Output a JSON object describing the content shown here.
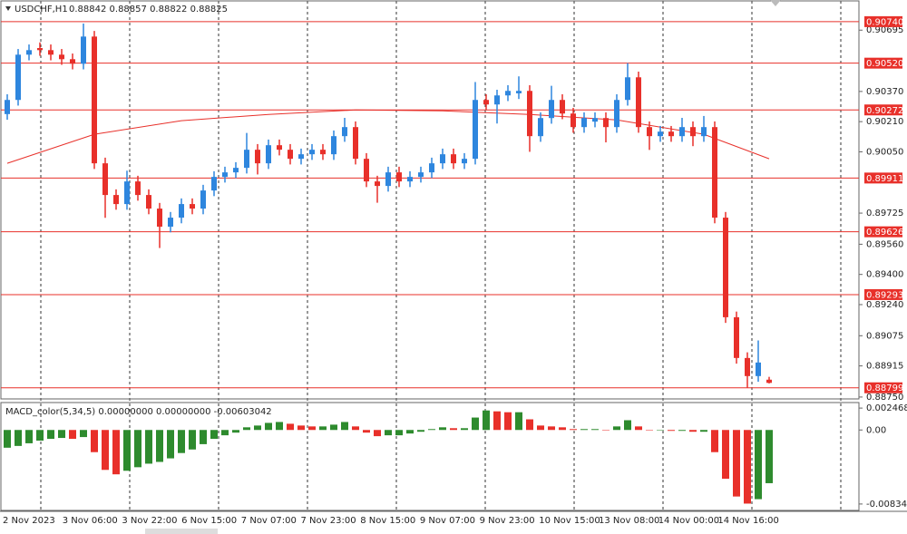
{
  "chart_data": {
    "type": "candlestick",
    "title": "USDCHF,H1",
    "ohlc_label": "0.88842 0.88857 0.88822 0.88825",
    "up_color": "#2e86de",
    "down_color": "#e8302a",
    "ma_color": "#e8302a",
    "level_color": "#e8302a",
    "ylim": [
      0.8874,
      0.9085
    ],
    "yticks": [
      0.90695,
      {
        "value": 0.9037,
        "label": "0.90370"
      },
      {
        "value": 0.9021,
        "label": "0.90210"
      },
      {
        "value": 0.9005,
        "label": "0.90050"
      },
      0.89725,
      {
        "value": 0.8956,
        "label": "0.89560"
      },
      {
        "value": 0.894,
        "label": "0.89400"
      },
      {
        "value": 0.8924,
        "label": "0.89240"
      },
      0.89075,
      0.88915,
      {
        "value": 0.8875,
        "label": "0.88750"
      }
    ],
    "levels": [
      {
        "value": 0.9074,
        "label": "0.90740"
      },
      {
        "value": 0.9052,
        "label": "0.90520"
      },
      0.90272,
      0.89911,
      0.89626,
      0.89293,
      0.88799
    ],
    "x_labels": [
      "2 Nov 2023",
      "3 Nov 06:00",
      "3 Nov 22:00",
      "6 Nov 15:00",
      "7 Nov 07:00",
      "7 Nov 23:00",
      "8 Nov 15:00",
      "9 Nov 07:00",
      "9 Nov 23:00",
      "10 Nov 15:00",
      "13 Nov 08:00",
      "14 Nov 00:00",
      "14 Nov 16:00"
    ],
    "candles": [
      [
        0.9025,
        0.90355,
        0.9022,
        0.90325
      ],
      [
        0.90325,
        0.90595,
        0.90295,
        0.90565
      ],
      [
        0.90565,
        0.90619,
        0.90535,
        0.90589
      ],
      [
        0.906,
        0.9063,
        0.90559,
        0.90589
      ],
      [
        0.90589,
        0.90619,
        0.90535,
        0.90565
      ],
      [
        0.90565,
        0.90595,
        0.90511,
        0.90541
      ],
      [
        0.90541,
        0.90571,
        0.90487,
        0.90517
      ],
      [
        0.90517,
        0.9073,
        0.90487,
        0.90661
      ],
      [
        0.90661,
        0.90691,
        0.89959,
        0.89989
      ],
      [
        0.89989,
        0.90019,
        0.897,
        0.89821
      ],
      [
        0.89821,
        0.89851,
        0.89743,
        0.89773
      ],
      [
        0.89773,
        0.8995,
        0.89743,
        0.89893
      ],
      [
        0.89893,
        0.89923,
        0.89791,
        0.89821
      ],
      [
        0.89821,
        0.89851,
        0.89719,
        0.89749
      ],
      [
        0.89749,
        0.89779,
        0.8954,
        0.89653
      ],
      [
        0.89653,
        0.89731,
        0.89623,
        0.89701
      ],
      [
        0.89701,
        0.89803,
        0.89671,
        0.89773
      ],
      [
        0.89773,
        0.89803,
        0.89719,
        0.89749
      ],
      [
        0.89749,
        0.89875,
        0.89719,
        0.89845
      ],
      [
        0.89845,
        0.89947,
        0.89815,
        0.89917
      ],
      [
        0.89917,
        0.89971,
        0.89887,
        0.89941
      ],
      [
        0.89941,
        0.89995,
        0.89911,
        0.89965
      ],
      [
        0.89965,
        0.9015,
        0.89935,
        0.90061
      ],
      [
        0.90061,
        0.90091,
        0.8993,
        0.89989
      ],
      [
        0.89989,
        0.90115,
        0.89959,
        0.90085
      ],
      [
        0.90085,
        0.90115,
        0.90031,
        0.90061
      ],
      [
        0.90061,
        0.90091,
        0.89983,
        0.90013
      ],
      [
        0.90013,
        0.90067,
        0.89983,
        0.90037
      ],
      [
        0.90037,
        0.90091,
        0.90007,
        0.90061
      ],
      [
        0.90061,
        0.90091,
        0.90007,
        0.90037
      ],
      [
        0.90037,
        0.90163,
        0.90007,
        0.90133
      ],
      [
        0.90133,
        0.9023,
        0.90103,
        0.90181
      ],
      [
        0.90181,
        0.90211,
        0.89983,
        0.90013
      ],
      [
        0.90013,
        0.90043,
        0.89863,
        0.89893
      ],
      [
        0.89893,
        0.89923,
        0.8978,
        0.89869
      ],
      [
        0.89869,
        0.89971,
        0.89839,
        0.89941
      ],
      [
        0.89941,
        0.89971,
        0.89863,
        0.89893
      ],
      [
        0.89893,
        0.89947,
        0.89863,
        0.89917
      ],
      [
        0.89917,
        0.89971,
        0.89887,
        0.89941
      ],
      [
        0.89941,
        0.90019,
        0.89911,
        0.89989
      ],
      [
        0.89989,
        0.90067,
        0.89959,
        0.90037
      ],
      [
        0.90037,
        0.90067,
        0.89959,
        0.89989
      ],
      [
        0.89989,
        0.90043,
        0.89959,
        0.90013
      ],
      [
        0.90013,
        0.9042,
        0.89983,
        0.90325
      ],
      [
        0.90325,
        0.90355,
        0.90271,
        0.90301
      ],
      [
        0.90301,
        0.90379,
        0.902,
        0.90349
      ],
      [
        0.90349,
        0.90403,
        0.90319,
        0.90373
      ],
      [
        0.9036,
        0.9045,
        0.9033,
        0.90373
      ],
      [
        0.90373,
        0.90403,
        0.9005,
        0.90133
      ],
      [
        0.90133,
        0.90259,
        0.90103,
        0.90229
      ],
      [
        0.90229,
        0.904,
        0.90199,
        0.90325
      ],
      [
        0.90325,
        0.90355,
        0.90223,
        0.90253
      ],
      [
        0.90253,
        0.90283,
        0.90151,
        0.90181
      ],
      [
        0.90181,
        0.90259,
        0.90151,
        0.90229
      ],
      [
        0.9021,
        0.90259,
        0.9018,
        0.90229
      ],
      [
        0.90229,
        0.90259,
        0.901,
        0.90181
      ],
      [
        0.90181,
        0.90355,
        0.90151,
        0.90325
      ],
      [
        0.90325,
        0.9052,
        0.90295,
        0.90445
      ],
      [
        0.90445,
        0.90475,
        0.90151,
        0.90181
      ],
      [
        0.90181,
        0.90211,
        0.9006,
        0.90133
      ],
      [
        0.90133,
        0.90187,
        0.90103,
        0.90157
      ],
      [
        0.90157,
        0.90187,
        0.90103,
        0.90133
      ],
      [
        0.90133,
        0.9023,
        0.90103,
        0.90181
      ],
      [
        0.90181,
        0.90211,
        0.9008,
        0.90133
      ],
      [
        0.90133,
        0.9024,
        0.90103,
        0.90181
      ],
      [
        0.90181,
        0.90211,
        0.89671,
        0.89701
      ],
      [
        0.89701,
        0.89731,
        0.89143,
        0.89173
      ],
      [
        0.89173,
        0.89203,
        0.88927,
        0.88957
      ],
      [
        0.88957,
        0.88987,
        0.888,
        0.88861
      ],
      [
        0.88861,
        0.8905,
        0.88831,
        0.88933
      ],
      [
        0.88842,
        0.88857,
        0.88822,
        0.88825
      ]
    ],
    "ma_index": [
      0,
      8,
      16,
      24,
      32,
      40,
      48,
      56,
      64,
      70
    ],
    "ma": [
      0.89989,
      0.90143,
      0.90215,
      0.90248,
      0.90272,
      0.90267,
      0.90248,
      0.90219,
      0.90143,
      0.90013
    ],
    "macd": {
      "title": "MACD_color(5,34,5) 0.00000000 0.00000000 -0.00603042",
      "up_color": "#2e8b2e",
      "down_color": "#e8302a",
      "ylim": [
        -0.00907,
        0.00299
      ],
      "yticks": [
        0.0024685,
        {
          "value": 0,
          "label": "0.00"
        },
        -0.008345
      ],
      "values": [
        -0.002,
        -0.0018,
        -0.0015,
        -0.0012,
        -0.001,
        -0.0009,
        -0.001,
        -0.0008,
        -0.0025,
        -0.0045,
        -0.005,
        -0.0046,
        -0.0042,
        -0.0038,
        -0.0036,
        -0.0032,
        -0.0026,
        -0.0022,
        -0.0016,
        -0.001,
        -0.0006,
        -0.0003,
        0.0003,
        0.0005,
        0.0008,
        0.0009,
        0.0007,
        0.0005,
        0.0004,
        0.0004,
        0.0006,
        0.0009,
        0.0004,
        -0.0003,
        -0.0007,
        -0.0006,
        -0.0006,
        -0.0004,
        -0.0002,
        0.0001,
        0.0003,
        0.0002,
        0.0002,
        0.0014,
        0.0022,
        0.0021,
        0.002,
        0.002,
        0.0012,
        0.0005,
        0.0004,
        0.0003,
        0.0001,
        0.0001,
        0.0001,
        0,
        0.0004,
        0.0011,
        0.0004,
        0,
        0,
        -0.0001,
        -0.0001,
        -0.0002,
        -0.0002,
        -0.0025,
        -0.0055,
        -0.0075,
        -0.0083,
        -0.0078,
        -0.006
      ]
    }
  }
}
